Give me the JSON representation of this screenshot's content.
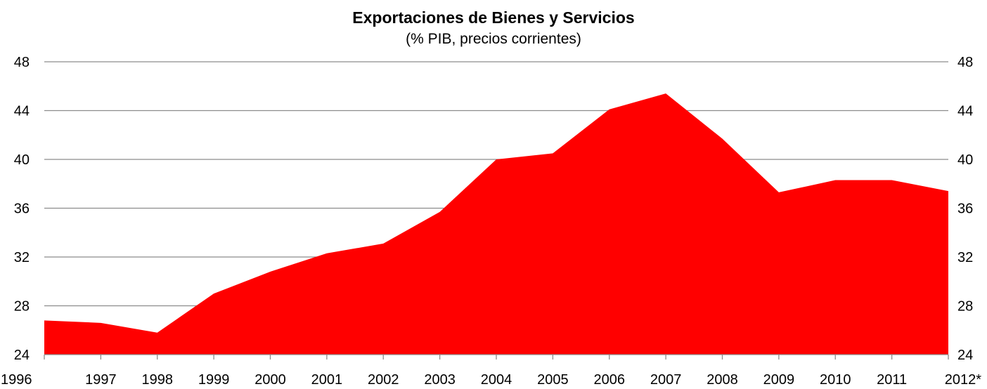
{
  "chart_data": {
    "type": "area",
    "title": "Exportaciones de Bienes y Servicios",
    "subtitle": "(% PIB, precios corrientes)",
    "categories": [
      "1996",
      "1997",
      "1998",
      "1999",
      "2000",
      "2001",
      "2002",
      "2003",
      "2004",
      "2005",
      "2006",
      "2007",
      "2008",
      "2009",
      "2010",
      "2011",
      "2012*"
    ],
    "series": [
      {
        "values": [
          26.8,
          26.6,
          25.8,
          29.0,
          30.8,
          32.3,
          33.1,
          35.7,
          40.0,
          40.5,
          44.1,
          45.4,
          41.7,
          37.3,
          38.3,
          38.3,
          37.4
        ],
        "color": "#ff0000"
      }
    ],
    "ylim": [
      24,
      48
    ],
    "yticks": [
      24,
      28,
      32,
      36,
      40,
      44,
      48
    ],
    "ytick_labels": [
      "24",
      "28",
      "32",
      "36",
      "40",
      "44",
      "48"
    ],
    "y_axis_left": true,
    "y_axis_right": true,
    "grid": true,
    "gridline_color": "#8c8c8c"
  }
}
